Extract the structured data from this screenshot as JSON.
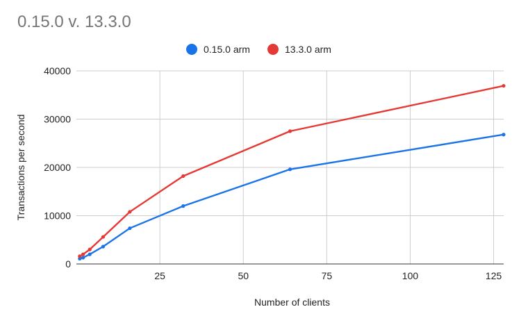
{
  "chart_data": {
    "type": "line",
    "title": "0.15.0 v. 13.3.0",
    "xlabel": "Number of clients",
    "ylabel": "Transactions per second",
    "xlim": [
      0,
      128
    ],
    "ylim": [
      0,
      40000
    ],
    "xticks": [
      25,
      50,
      75,
      100,
      125
    ],
    "yticks": [
      0,
      10000,
      20000,
      30000,
      40000
    ],
    "grid": true,
    "legend_position": "top",
    "series": [
      {
        "name": "0.15.0 arm",
        "color": "#1a73e8",
        "x": [
          1,
          2,
          4,
          8,
          16,
          32,
          64,
          128
        ],
        "y": [
          1100,
          1300,
          2000,
          3600,
          7400,
          12000,
          19600,
          26800
        ]
      },
      {
        "name": "13.3.0 arm",
        "color": "#e53935",
        "x": [
          1,
          2,
          4,
          8,
          16,
          32,
          64,
          128
        ],
        "y": [
          1600,
          2000,
          3000,
          5600,
          10800,
          18200,
          27500,
          36900
        ]
      }
    ]
  }
}
